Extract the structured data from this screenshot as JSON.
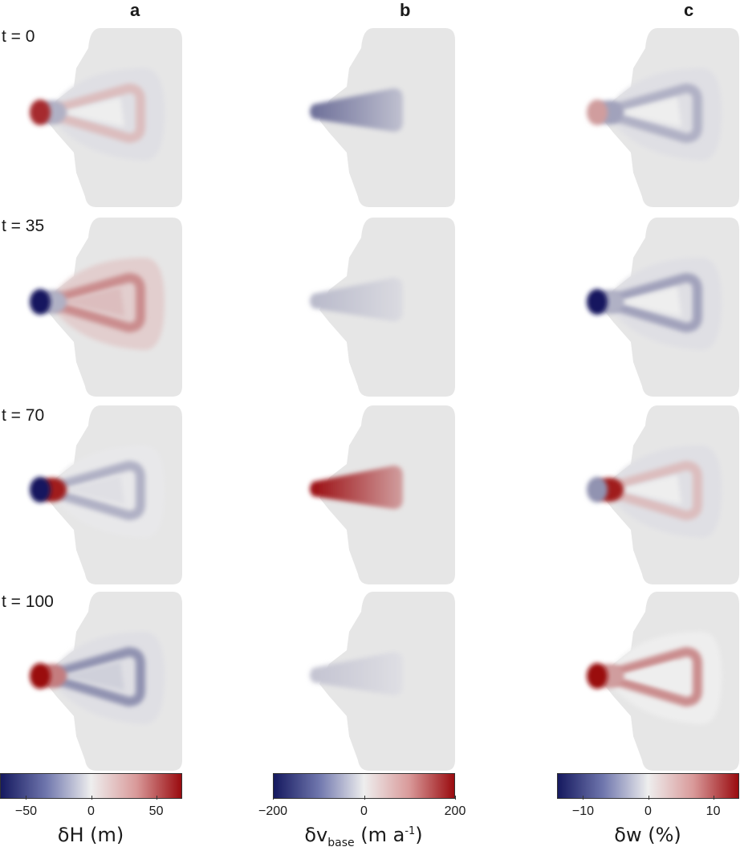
{
  "chart_data": {
    "type": "heatmap",
    "columns": [
      {
        "key": "a",
        "label": "a",
        "variable": "δH (m)",
        "vmin": -70,
        "vmax": 70,
        "ticks": [
          -50,
          0,
          50
        ],
        "tick_labels": [
          "−50",
          "0",
          "50"
        ]
      },
      {
        "key": "b",
        "label": "b",
        "variable": "δv_base (m a⁻¹)",
        "vmin": -200,
        "vmax": 200,
        "ticks": [
          -200,
          0,
          200
        ],
        "tick_labels": [
          "−200",
          "0",
          "200"
        ]
      },
      {
        "key": "c",
        "label": "c",
        "variable": "δw (%)",
        "vmin": -14,
        "vmax": 14,
        "ticks": [
          -10,
          0,
          10
        ],
        "tick_labels": [
          "−10",
          "0",
          "10"
        ]
      }
    ],
    "rows": [
      {
        "label": "t = 0",
        "a": {
          "tip": 60,
          "front": -20,
          "rim": 15,
          "inner": 0,
          "halo": -5
        },
        "b": {
          "stream": -120
        },
        "c": {
          "tip": 5,
          "front": -5,
          "rim": -4,
          "inner": 0,
          "halo": -1
        }
      },
      {
        "label": "t = 35",
        "a": {
          "tip": -70,
          "front": -20,
          "rim": 30,
          "inner": 15,
          "halo": 10
        },
        "b": {
          "stream": -50
        },
        "c": {
          "tip": -14,
          "front": -4,
          "rim": -5,
          "inner": 0,
          "halo": -1
        }
      },
      {
        "label": "t = 70",
        "a": {
          "tip": -70,
          "front": 65,
          "rim": -20,
          "inner": -5,
          "halo": -2
        },
        "b": {
          "stream": 200
        },
        "c": {
          "tip": -6,
          "front": 13,
          "rim": 3,
          "inner": 0,
          "halo": -1
        }
      },
      {
        "label": "t = 100",
        "a": {
          "tip": 70,
          "front": 35,
          "rim": -30,
          "inner": -10,
          "halo": -5
        },
        "b": {
          "stream": -40
        },
        "c": {
          "tip": 14,
          "front": 5,
          "rim": 6,
          "inner": 0,
          "halo": 0
        }
      }
    ],
    "colormap": {
      "low": "#15195f",
      "mid": "#eeeeee",
      "high": "#9a0b0f"
    },
    "background_value_color": "#e6e6e6"
  }
}
